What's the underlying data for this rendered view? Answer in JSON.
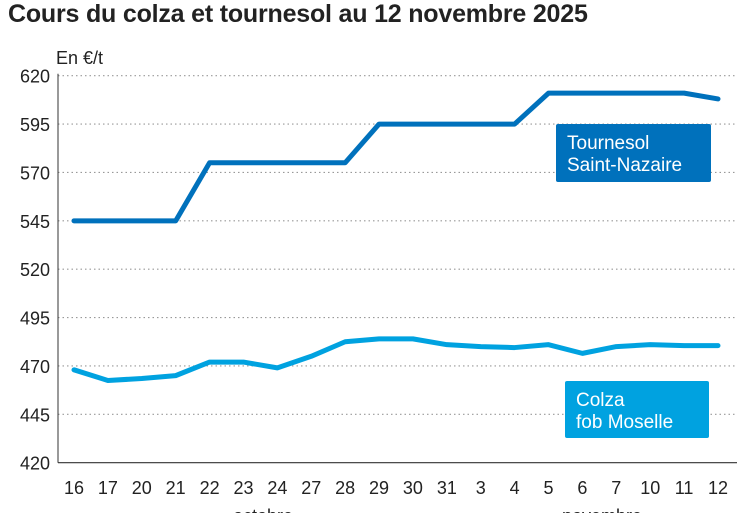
{
  "chart_data": {
    "type": "line",
    "title": "Cours du colza et tournesol au 12 novembre 2025",
    "ylabel": "En €/t",
    "xlabel": "",
    "ylim": [
      420,
      620
    ],
    "yticks": [
      420,
      445,
      470,
      495,
      520,
      545,
      570,
      595,
      620
    ],
    "grid": true,
    "categories": [
      "16",
      "17",
      "20",
      "21",
      "22",
      "23",
      "24",
      "27",
      "28",
      "29",
      "30",
      "31",
      "3",
      "4",
      "5",
      "6",
      "7",
      "10",
      "11",
      "12"
    ],
    "month_labels": [
      "octobre",
      "novembre"
    ],
    "series": [
      {
        "name": "Tournesol Saint-Nazaire",
        "color": "#0071bc",
        "values": [
          545,
          545,
          545,
          545,
          575,
          575,
          575,
          575,
          575,
          595,
          595,
          595,
          595,
          595,
          611,
          611,
          611,
          611,
          611,
          608
        ]
      },
      {
        "name": "Colza fob Moselle",
        "color": "#00a2e0",
        "values": [
          468,
          462.5,
          463.5,
          465,
          472,
          472,
          469,
          475,
          482.5,
          484,
          484,
          481,
          480,
          479.5,
          481,
          476.5,
          480,
          481,
          480.5,
          480.5
        ]
      }
    ]
  }
}
